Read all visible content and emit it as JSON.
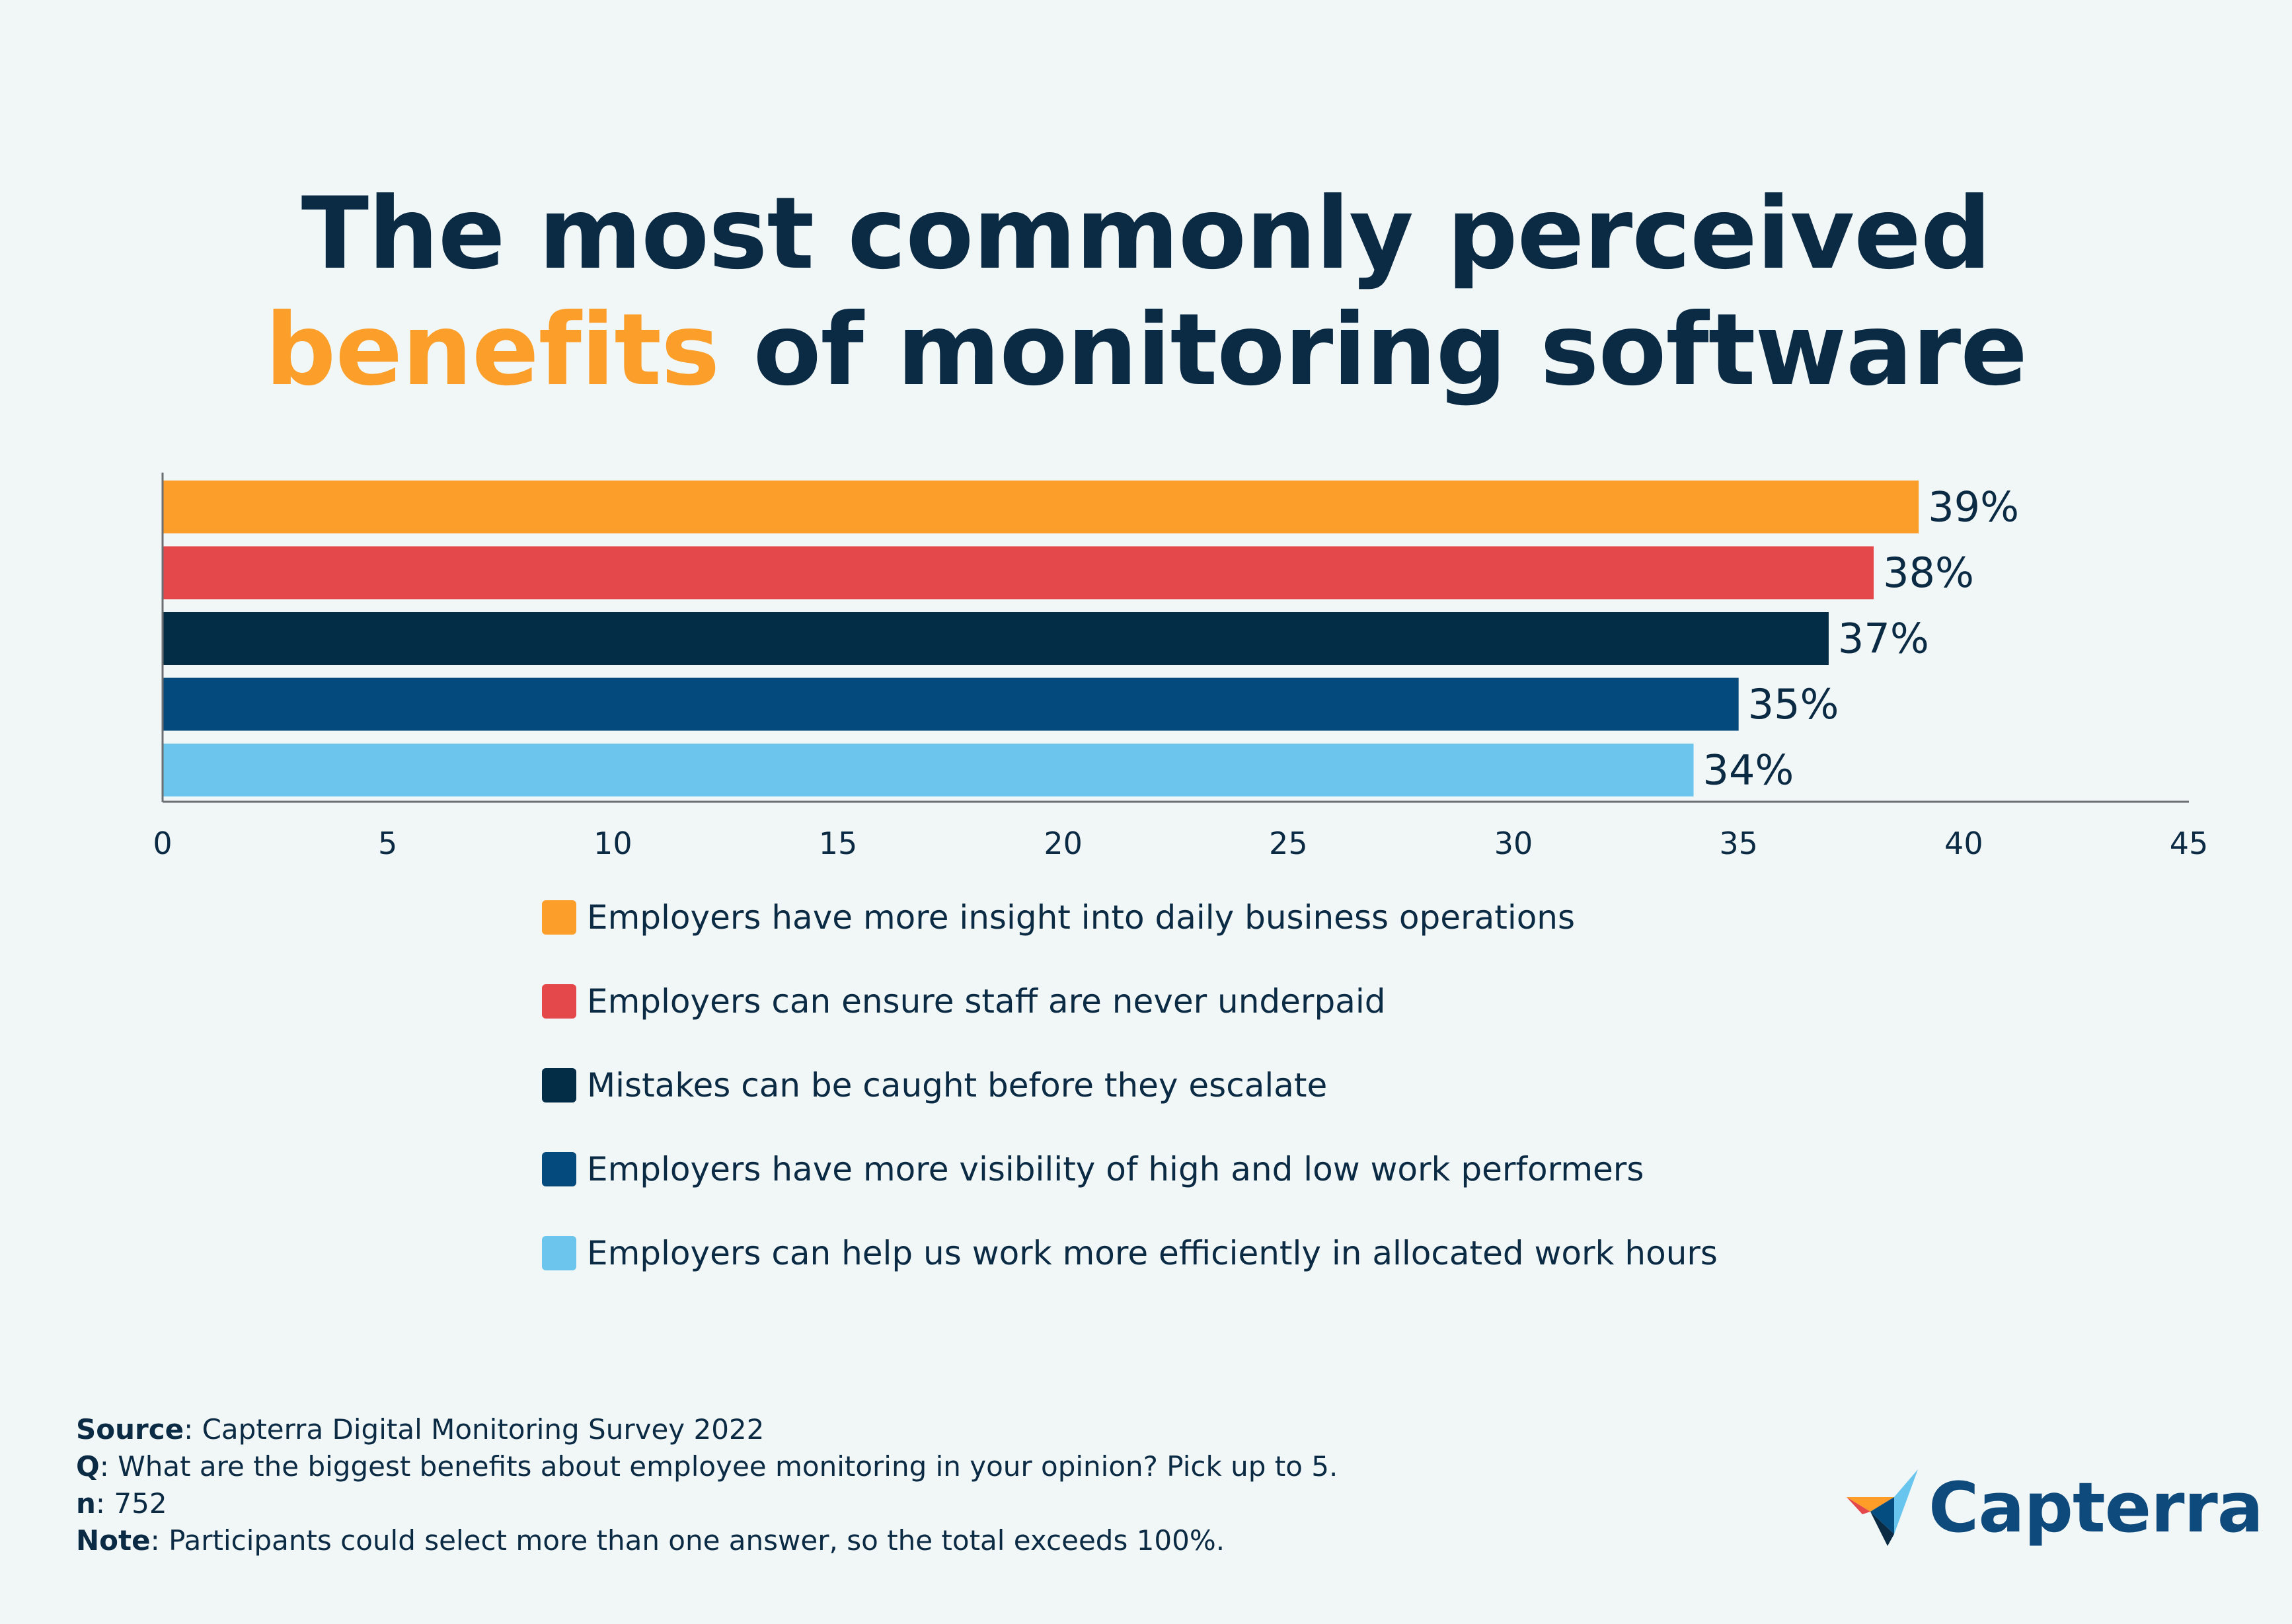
{
  "title": {
    "line1": "The most commonly perceived",
    "highlight": "benefits",
    "line2_rest": " of monitoring software"
  },
  "chart_data": {
    "type": "bar",
    "orientation": "horizontal",
    "categories": [
      "Employers have more insight into daily business operations",
      "Employers can ensure staff are never underpaid",
      "Mistakes can be caught before they escalate",
      "Employers have more visibility of high and low work performers",
      "Employers can help us work more efficiently in allocated work hours"
    ],
    "values": [
      39,
      38,
      37,
      35,
      34
    ],
    "value_labels": [
      "39%",
      "38%",
      "37%",
      "35%",
      "34%"
    ],
    "colors": [
      "#fc9e2a",
      "#e5484a",
      "#032c46",
      "#054a7c",
      "#6bc5ec"
    ],
    "xlim": [
      0,
      45
    ],
    "xticks": [
      0,
      5,
      10,
      15,
      20,
      25,
      30,
      35,
      40,
      45
    ],
    "xtick_labels": [
      "0",
      "5",
      "10",
      "15",
      "20",
      "25",
      "30",
      "35",
      "40",
      "45"
    ],
    "xlabel": "",
    "ylabel": "",
    "legend_position": "bottom"
  },
  "footer": {
    "source_label": "Source",
    "source_text": ": Capterra Digital Monitoring Survey 2022",
    "q_label": "Q",
    "q_text": ": What are the biggest benefits about employee monitoring in your opinion? Pick up to 5.",
    "n_label": "n",
    "n_text": ": 752",
    "note_label": "Note",
    "note_text": ": Participants could select more than one answer, so the total exceeds 100%."
  },
  "brand": {
    "logo_text": "Capterra",
    "icon": "capterra-arrow-icon"
  }
}
